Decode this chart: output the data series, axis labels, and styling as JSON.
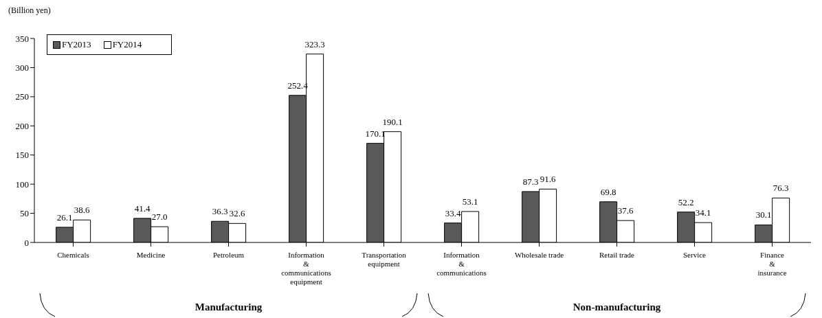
{
  "chart_data": {
    "type": "bar",
    "ylabel": "(Billion yen)",
    "categories": [
      "Chemicals",
      "Medicine",
      "Petroleum",
      "Information\n&\ncommunications\nequipment",
      "Transportation\nequipment",
      "Information\n&\ncommunications",
      "Wholesale trade",
      "Retail trade",
      "Service",
      "Finance\n&\ninsurance"
    ],
    "series": [
      {
        "name": "FY2013",
        "color": "#595959",
        "values": [
          26.1,
          41.4,
          36.3,
          252.4,
          170.1,
          33.4,
          87.3,
          69.8,
          52.2,
          30.1
        ],
        "value_labels": [
          "26.1",
          "41.4",
          "36.3",
          "252.4",
          "170.1",
          "33.4",
          "87.3",
          "69.8",
          "52.2",
          "30.1"
        ]
      },
      {
        "name": "FY2014",
        "color": "#ffffff",
        "values": [
          38.6,
          27.0,
          32.6,
          323.3,
          190.1,
          53.1,
          91.6,
          37.6,
          34.1,
          76.3
        ],
        "value_labels": [
          "38.6",
          "27.0",
          "32.6",
          "323.3",
          "190.1",
          "53.1",
          "91.6",
          "37.6",
          "34.1",
          "76.3"
        ]
      }
    ],
    "ylim": [
      0,
      350
    ],
    "yticks": [
      0,
      50,
      100,
      150,
      200,
      250,
      300,
      350
    ],
    "legend": "top left",
    "annotations": [
      "Manufacturing",
      "Non-manufacturing"
    ]
  }
}
